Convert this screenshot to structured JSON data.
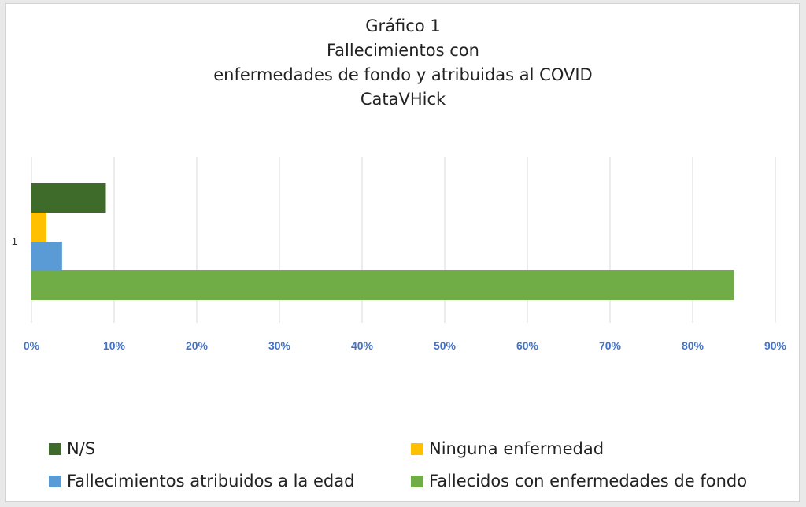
{
  "chart_data": {
    "type": "bar",
    "orientation": "horizontal",
    "title_lines": [
      "Gráfico 1",
      "Fallecimientos con",
      "enfermedades de fondo y atribuidas al COVID",
      "CataVHick"
    ],
    "categories": [
      "1"
    ],
    "x_ticks": [
      "0%",
      "10%",
      "20%",
      "30%",
      "40%",
      "50%",
      "60%",
      "70%",
      "80%",
      "90%"
    ],
    "xlim": [
      0,
      90
    ],
    "grid": true,
    "legend_position": "bottom",
    "series": [
      {
        "name": "N/S",
        "values": [
          9
        ],
        "color": "#3e6a2a"
      },
      {
        "name": "Ninguna enfermedad",
        "values": [
          1.8
        ],
        "color": "#ffc000"
      },
      {
        "name": "Fallecimientos atribuidos a la edad",
        "values": [
          3.7
        ],
        "color": "#5b9bd5"
      },
      {
        "name": "Fallecidos con enfermedades de fondo",
        "values": [
          85
        ],
        "color": "#70ad47"
      }
    ],
    "colors": {
      "tick_label": "#4472c4",
      "grid": "#d9d9d9"
    }
  }
}
